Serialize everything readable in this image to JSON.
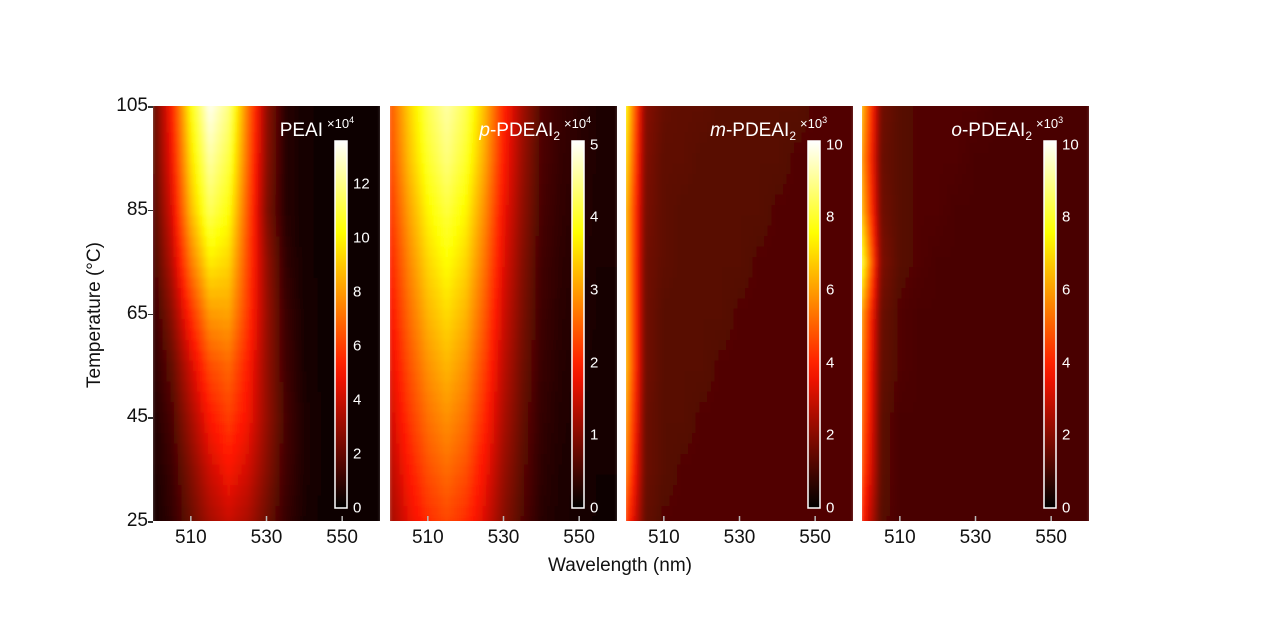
{
  "chart_data": {
    "type": "heatmap",
    "xlabel": "Wavelength  (nm)",
    "ylabel": "Temperature (°C)",
    "xlim": [
      500,
      560
    ],
    "ylim": [
      25,
      105
    ],
    "x_ticks": [
      510,
      530,
      550
    ],
    "y_ticks": [
      105,
      85,
      65,
      45,
      25
    ],
    "colormap": "hot",
    "wavelengths": [
      500,
      505,
      510,
      515,
      520,
      525,
      530,
      535,
      540,
      545,
      550,
      555,
      560
    ],
    "temperatures": [
      25,
      35,
      45,
      55,
      65,
      75,
      85,
      95,
      105
    ],
    "panels": [
      {
        "title_italic": "",
        "title_main": "PEAI",
        "title_sub": "",
        "multiplier_base": "×10",
        "multiplier_exp": "4",
        "cbar_range": [
          0,
          13.6
        ],
        "cbar_ticks": [
          0,
          2,
          4,
          6,
          8,
          10,
          12
        ],
        "z": [
          [
            0.4,
            1.0,
            2.1,
            3.3,
            4.0,
            3.4,
            2.2,
            1.1,
            0.5,
            0.3,
            0.2,
            0.2,
            0.2
          ],
          [
            0.5,
            1.2,
            2.6,
            4.1,
            5.0,
            4.2,
            2.7,
            1.3,
            0.6,
            0.3,
            0.2,
            0.2,
            0.2
          ],
          [
            0.6,
            1.5,
            3.3,
            5.1,
            6.0,
            4.9,
            3.0,
            1.4,
            0.6,
            0.3,
            0.2,
            0.2,
            0.2
          ],
          [
            0.8,
            2.0,
            4.2,
            6.3,
            6.9,
            5.3,
            3.0,
            1.3,
            0.5,
            0.3,
            0.2,
            0.2,
            0.2
          ],
          [
            1.0,
            2.8,
            5.6,
            8.0,
            8.2,
            5.9,
            3.1,
            1.2,
            0.5,
            0.3,
            0.2,
            0.2,
            0.2
          ],
          [
            1.3,
            3.7,
            7.3,
            9.8,
            9.3,
            6.2,
            3.0,
            1.0,
            0.4,
            0.3,
            0.2,
            0.2,
            0.2
          ],
          [
            1.5,
            4.4,
            8.7,
            11.4,
            10.3,
            6.5,
            2.6,
            0.8,
            0.4,
            0.3,
            0.2,
            0.2,
            0.2
          ],
          [
            1.7,
            4.9,
            9.5,
            12.4,
            11.1,
            6.9,
            2.8,
            0.8,
            0.4,
            0.3,
            0.2,
            0.2,
            0.2
          ],
          [
            1.8,
            5.3,
            10.2,
            13.4,
            11.9,
            7.2,
            2.9,
            0.8,
            0.4,
            0.3,
            0.2,
            0.2,
            0.2
          ]
        ]
      },
      {
        "title_italic": "p",
        "title_main": "-PDEAI",
        "title_sub": "2",
        "multiplier_base": "×10",
        "multiplier_exp": "4",
        "cbar_range": [
          0,
          5.05
        ],
        "cbar_ticks": [
          0,
          1,
          2,
          3,
          4,
          5
        ],
        "z": [
          [
            1.2,
            1.7,
            2.09,
            2.3,
            2.09,
            1.61,
            1.01,
            0.6,
            0.3,
            0.21,
            0.16,
            0.12,
            0.12
          ],
          [
            1.35,
            1.92,
            2.37,
            2.6,
            2.37,
            1.82,
            1.14,
            0.68,
            0.34,
            0.23,
            0.18,
            0.13,
            0.13
          ],
          [
            1.51,
            2.15,
            2.64,
            2.9,
            2.64,
            2.03,
            1.28,
            0.75,
            0.38,
            0.26,
            0.2,
            0.15,
            0.15
          ],
          [
            1.66,
            2.37,
            2.91,
            3.2,
            2.91,
            2.24,
            1.41,
            0.83,
            0.42,
            0.29,
            0.22,
            0.16,
            0.16
          ],
          [
            1.82,
            2.59,
            3.19,
            3.5,
            3.19,
            2.45,
            1.54,
            0.91,
            0.46,
            0.32,
            0.25,
            0.18,
            0.18
          ],
          [
            1.98,
            2.81,
            3.46,
            3.8,
            3.46,
            2.66,
            1.67,
            0.99,
            0.49,
            0.34,
            0.27,
            0.19,
            0.19
          ],
          [
            2.13,
            3.03,
            3.73,
            4.1,
            3.73,
            2.87,
            1.8,
            1.07,
            0.53,
            0.37,
            0.29,
            0.21,
            0.21
          ],
          [
            2.29,
            3.26,
            4.0,
            4.4,
            4.0,
            3.08,
            1.94,
            1.14,
            0.57,
            0.4,
            0.31,
            0.22,
            0.22
          ],
          [
            2.39,
            3.4,
            4.19,
            4.6,
            4.19,
            3.22,
            2.02,
            1.2,
            0.6,
            0.41,
            0.32,
            0.23,
            0.23
          ]
        ]
      },
      {
        "title_italic": "m",
        "title_main": "-PDEAI",
        "title_sub": "2",
        "multiplier_base": "×10",
        "multiplier_exp": "3",
        "cbar_range": [
          0,
          10.1
        ],
        "cbar_ticks": [
          0,
          2,
          4,
          6,
          8,
          10
        ],
        "z": [
          [
            4.5,
            1.5,
            1.2,
            1.2,
            1.2,
            1.2,
            1.2,
            1.2,
            1.2,
            1.2,
            1.2,
            1.2,
            1.2
          ],
          [
            5.5,
            1.6,
            1.3,
            1.2,
            1.2,
            1.2,
            1.2,
            1.2,
            1.2,
            1.2,
            1.2,
            1.2,
            1.2
          ],
          [
            6.0,
            1.6,
            1.3,
            1.3,
            1.2,
            1.2,
            1.2,
            1.2,
            1.2,
            1.2,
            1.2,
            1.2,
            1.2
          ],
          [
            6.5,
            1.7,
            1.3,
            1.3,
            1.3,
            1.2,
            1.2,
            1.2,
            1.2,
            1.2,
            1.2,
            1.2,
            1.2
          ],
          [
            6.5,
            1.7,
            1.3,
            1.3,
            1.3,
            1.3,
            1.2,
            1.2,
            1.2,
            1.2,
            1.2,
            1.2,
            1.2
          ],
          [
            6.5,
            1.7,
            1.4,
            1.3,
            1.3,
            1.3,
            1.3,
            1.2,
            1.2,
            1.2,
            1.2,
            1.2,
            1.2
          ],
          [
            6.5,
            1.8,
            1.4,
            1.3,
            1.3,
            1.3,
            1.3,
            1.3,
            1.2,
            1.2,
            1.2,
            1.2,
            1.2
          ],
          [
            7.0,
            1.9,
            1.4,
            1.4,
            1.3,
            1.3,
            1.3,
            1.3,
            1.3,
            1.2,
            1.2,
            1.2,
            1.2
          ],
          [
            7.5,
            2.0,
            1.5,
            1.4,
            1.4,
            1.3,
            1.3,
            1.3,
            1.3,
            1.3,
            1.2,
            1.2,
            1.2
          ]
        ]
      },
      {
        "title_italic": "o",
        "title_main": "-PDEAI",
        "title_sub": "2",
        "multiplier_base": "×10",
        "multiplier_exp": "3",
        "cbar_range": [
          0,
          10.1
        ],
        "cbar_ticks": [
          0,
          2,
          4,
          6,
          8,
          10
        ],
        "z": [
          [
            4.0,
            1.3,
            1.1,
            1.1,
            1.1,
            1.1,
            1.1,
            1.1,
            1.1,
            1.1,
            1.1,
            1.1,
            1.1
          ],
          [
            4.8,
            1.4,
            1.1,
            1.1,
            1.1,
            1.1,
            1.1,
            1.1,
            1.1,
            1.1,
            1.1,
            1.1,
            1.1
          ],
          [
            5.2,
            1.4,
            1.1,
            1.1,
            1.1,
            1.1,
            1.1,
            1.1,
            1.1,
            1.1,
            1.1,
            1.1,
            1.1
          ],
          [
            5.5,
            1.5,
            1.2,
            1.1,
            1.1,
            1.1,
            1.1,
            1.1,
            1.1,
            1.1,
            1.1,
            1.1,
            1.1
          ],
          [
            6.0,
            1.6,
            1.2,
            1.1,
            1.1,
            1.1,
            1.1,
            1.1,
            1.1,
            1.1,
            1.1,
            1.1,
            1.1
          ],
          [
            8.0,
            1.9,
            1.3,
            1.2,
            1.1,
            1.1,
            1.1,
            1.1,
            1.1,
            1.1,
            1.1,
            1.1,
            1.1
          ],
          [
            6.5,
            1.7,
            1.3,
            1.2,
            1.2,
            1.1,
            1.1,
            1.1,
            1.1,
            1.1,
            1.1,
            1.1,
            1.1
          ],
          [
            6.0,
            1.6,
            1.3,
            1.2,
            1.2,
            1.2,
            1.1,
            1.1,
            1.1,
            1.1,
            1.1,
            1.1,
            1.1
          ],
          [
            6.5,
            1.7,
            1.3,
            1.2,
            1.2,
            1.2,
            1.2,
            1.1,
            1.1,
            1.1,
            1.1,
            1.1,
            1.1
          ]
        ]
      }
    ]
  }
}
